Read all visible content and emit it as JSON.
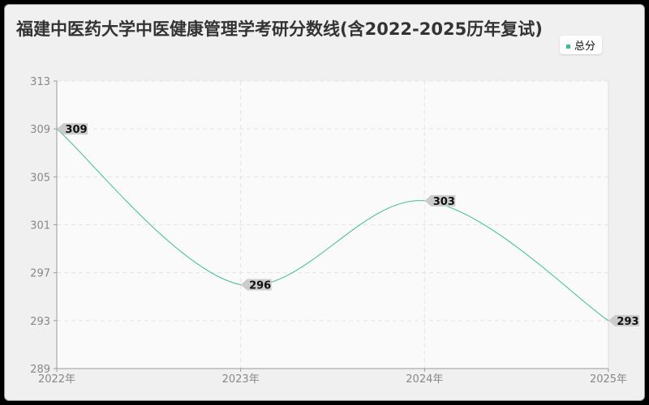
{
  "chart_data": {
    "type": "line",
    "title": "福建中医药大学中医健康管理学考研分数线(含2022-2025历年复试)",
    "categories": [
      "2022年",
      "2023年",
      "2024年",
      "2025年"
    ],
    "series": [
      {
        "name": "总分",
        "values": [
          309,
          296,
          303,
          293
        ],
        "color": "#3cbf8f"
      }
    ],
    "ylim": [
      289,
      313
    ],
    "yticks": [
      313,
      309,
      305,
      301,
      297,
      293,
      289
    ],
    "grid": true,
    "legend": "top-right"
  }
}
